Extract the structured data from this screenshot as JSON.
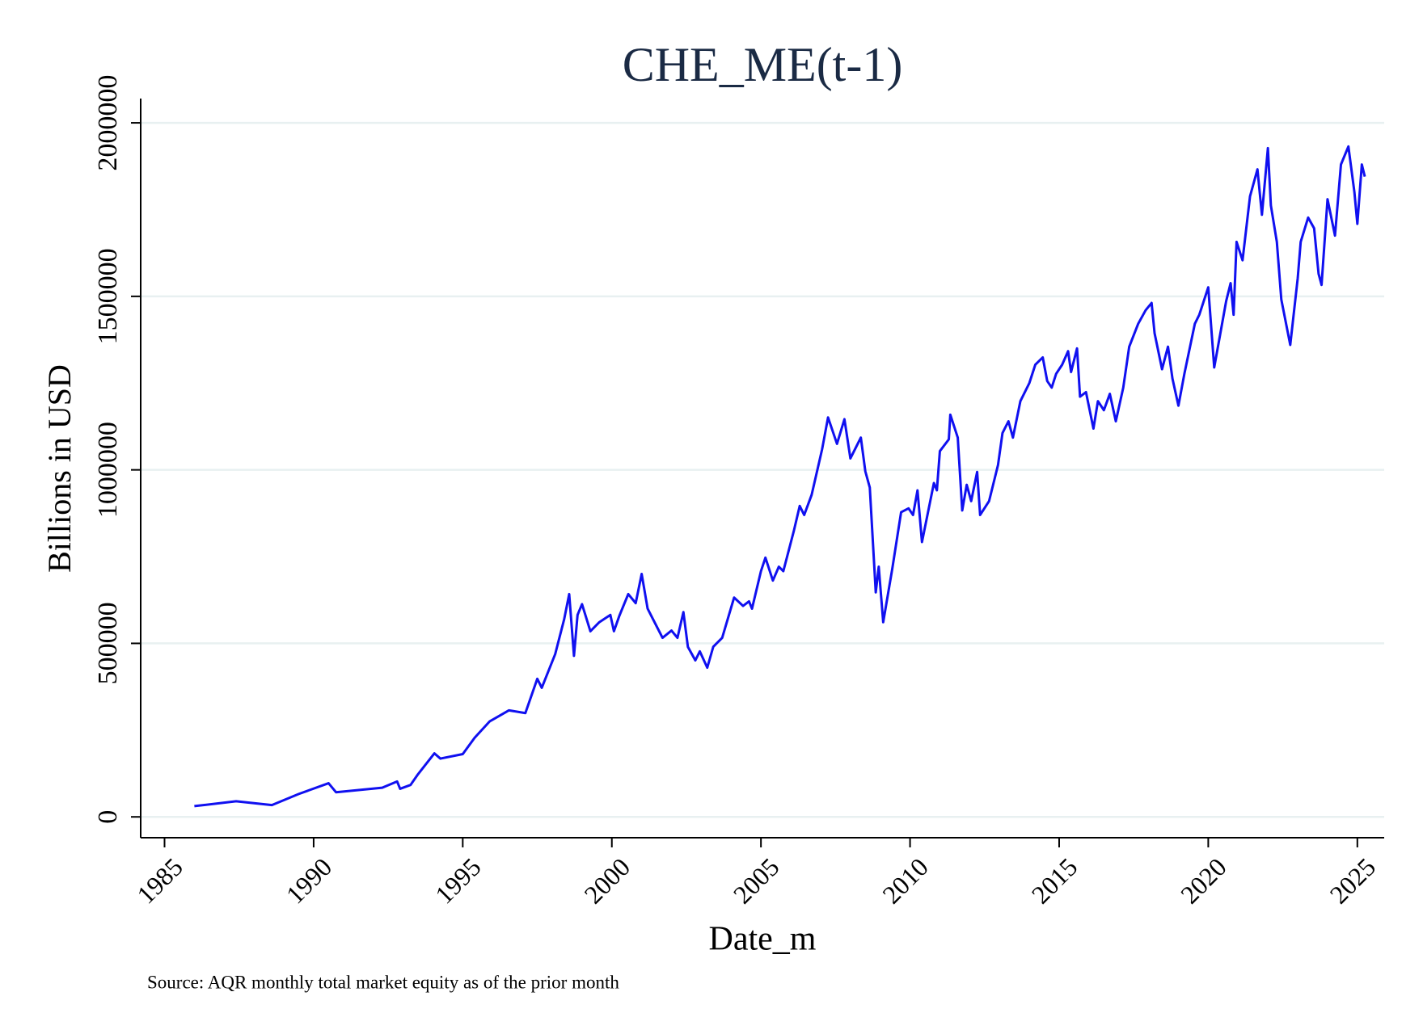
{
  "chart_data": {
    "type": "line",
    "title": "CHE_ME(t-1)",
    "x_label": "Date_m",
    "y_label": "Billions in USD",
    "note": "Source: AQR monthly total market equity as of the prior month",
    "color": "#1010f0",
    "grid": true,
    "xlim": [
      1984.2,
      2025.9
    ],
    "xticks": [
      1985,
      1990,
      1995,
      2000,
      2005,
      2010,
      2015,
      2020,
      2025
    ],
    "ylim": [
      -60000,
      2070000
    ],
    "yticks": [
      0,
      500000,
      1000000,
      1500000,
      2000000
    ],
    "x": [
      1986.0,
      1987.4,
      1988.6,
      1989.5,
      1990.5,
      1990.75,
      1992.3,
      1992.8,
      1992.9,
      1993.25,
      1993.5,
      1994.05,
      1994.25,
      1995.0,
      1995.4,
      1995.9,
      1996.55,
      1997.1,
      1997.5,
      1997.65,
      1998.1,
      1998.4,
      1998.57,
      1998.73,
      1998.85,
      1999.0,
      1999.28,
      1999.58,
      1999.95,
      2000.07,
      2000.25,
      2000.55,
      2000.8,
      2001.0,
      2001.2,
      2001.7,
      2002.0,
      2002.2,
      2002.4,
      2002.55,
      2002.8,
      2002.95,
      2003.2,
      2003.4,
      2003.7,
      2004.1,
      2004.4,
      2004.6,
      2004.7,
      2005.0,
      2005.15,
      2005.4,
      2005.6,
      2005.75,
      2006.1,
      2006.3,
      2006.45,
      2006.7,
      2007.05,
      2007.25,
      2007.55,
      2007.8,
      2008.0,
      2008.35,
      2008.5,
      2008.65,
      2008.85,
      2008.95,
      2009.1,
      2009.4,
      2009.7,
      2009.95,
      2010.1,
      2010.25,
      2010.4,
      2010.8,
      2010.9,
      2011.0,
      2011.3,
      2011.35,
      2011.6,
      2011.75,
      2011.9,
      2012.05,
      2012.25,
      2012.35,
      2012.65,
      2012.95,
      2013.1,
      2013.3,
      2013.45,
      2013.7,
      2014.0,
      2014.2,
      2014.45,
      2014.6,
      2014.75,
      2014.9,
      2015.1,
      2015.3,
      2015.4,
      2015.6,
      2015.7,
      2015.9,
      2016.15,
      2016.3,
      2016.5,
      2016.7,
      2016.9,
      2017.15,
      2017.35,
      2017.65,
      2017.9,
      2018.1,
      2018.2,
      2018.45,
      2018.65,
      2018.8,
      2019.0,
      2019.2,
      2019.55,
      2019.7,
      2020.0,
      2020.2,
      2020.6,
      2020.75,
      2020.85,
      2020.95,
      2021.15,
      2021.4,
      2021.65,
      2021.8,
      2022.0,
      2022.1,
      2022.3,
      2022.45,
      2022.75,
      2023.0,
      2023.1,
      2023.35,
      2023.55,
      2023.7,
      2023.8,
      2024.0,
      2024.25,
      2024.45,
      2024.7,
      2024.9,
      2025.0,
      2025.15,
      2025.25
    ],
    "values": [
      31000,
      45000,
      34000,
      66000,
      97000,
      71000,
      84000,
      102000,
      81000,
      92000,
      123000,
      183000,
      168000,
      181000,
      228000,
      275000,
      307000,
      299000,
      398000,
      372000,
      469000,
      569000,
      642000,
      464000,
      582000,
      613000,
      535000,
      561000,
      582000,
      535000,
      579000,
      642000,
      616000,
      700000,
      600000,
      516000,
      537000,
      516000,
      590000,
      490000,
      451000,
      477000,
      430000,
      490000,
      516000,
      632000,
      608000,
      621000,
      600000,
      708000,
      747000,
      681000,
      721000,
      708000,
      823000,
      896000,
      870000,
      928000,
      1059000,
      1151000,
      1075000,
      1146000,
      1033000,
      1093000,
      996000,
      949000,
      647000,
      721000,
      561000,
      713000,
      878000,
      889000,
      870000,
      941000,
      792000,
      962000,
      941000,
      1054000,
      1088000,
      1159000,
      1093000,
      883000,
      957000,
      910000,
      994000,
      870000,
      910000,
      1014000,
      1106000,
      1140000,
      1093000,
      1198000,
      1250000,
      1303000,
      1324000,
      1256000,
      1237000,
      1277000,
      1303000,
      1342000,
      1282000,
      1350000,
      1211000,
      1224000,
      1119000,
      1198000,
      1172000,
      1219000,
      1140000,
      1237000,
      1355000,
      1421000,
      1460000,
      1481000,
      1394000,
      1290000,
      1355000,
      1263000,
      1185000,
      1277000,
      1421000,
      1447000,
      1526000,
      1295000,
      1486000,
      1538000,
      1447000,
      1657000,
      1604000,
      1788000,
      1866000,
      1735000,
      1927000,
      1762000,
      1657000,
      1491000,
      1360000,
      1552000,
      1657000,
      1727000,
      1696000,
      1565000,
      1533000,
      1780000,
      1675000,
      1880000,
      1932000,
      1801000,
      1709000,
      1880000,
      1845000
    ]
  }
}
